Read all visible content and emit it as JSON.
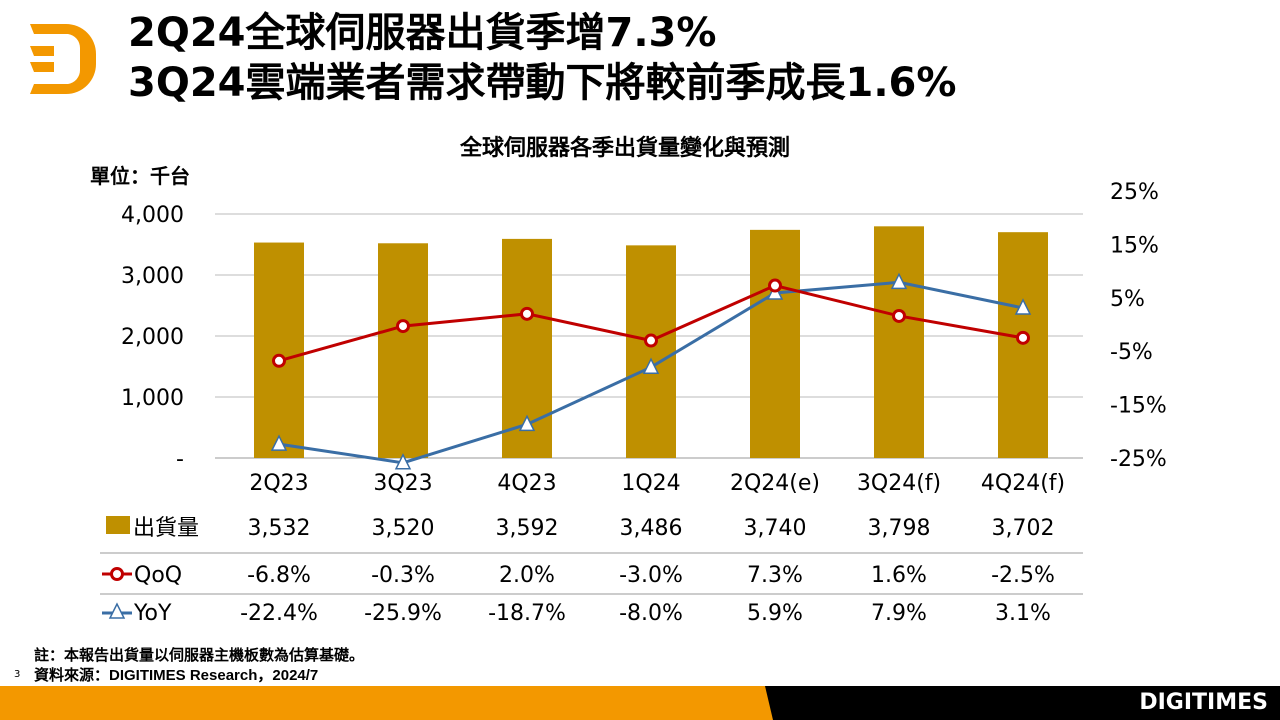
{
  "header": {
    "title_line1": "2Q24全球伺服器出貨季增7.3%",
    "title_line2": "3Q24雲端業者需求帶動下將較前季成長1.6%"
  },
  "footer": {
    "note": "註：本報告出貨量以伺服器主機板數為估算基礎。",
    "source": "資料來源：DIGITIMES Research，2024/7",
    "page": "3",
    "brand": "DIGITIMES"
  },
  "colors": {
    "bar": "#BF9000",
    "qoq": "#C00000",
    "yoy": "#3A6EA5",
    "orange": "#F39800"
  },
  "chart_data": {
    "type": "bar",
    "title": "全球伺服器各季出貨量變化與預測",
    "ylabel": "單位：千台",
    "categories": [
      "2Q23",
      "3Q23",
      "4Q23",
      "1Q24",
      "2Q24(e)",
      "3Q24(f)",
      "4Q24(f)"
    ],
    "ylim": [
      0,
      4000
    ],
    "yticks": [
      "-",
      "1,000",
      "2,000",
      "3,000",
      "4,000"
    ],
    "y2lim": [
      -25,
      25
    ],
    "y2ticks": [
      "-25%",
      "-15%",
      "-5%",
      "5%",
      "15%",
      "25%"
    ],
    "grid": true,
    "series": [
      {
        "name": "出貨量",
        "type": "bar",
        "values": [
          3532,
          3520,
          3592,
          3486,
          3740,
          3798,
          3702
        ],
        "labels": [
          "3,532",
          "3,520",
          "3,592",
          "3,486",
          "3,740",
          "3,798",
          "3,702"
        ]
      },
      {
        "name": "QoQ",
        "type": "line",
        "axis": "right",
        "values": [
          -6.8,
          -0.3,
          2.0,
          -3.0,
          7.3,
          1.6,
          -2.5
        ],
        "labels": [
          "-6.8%",
          "-0.3%",
          "2.0%",
          "-3.0%",
          "7.3%",
          "1.6%",
          "-2.5%"
        ]
      },
      {
        "name": "YoY",
        "type": "line",
        "axis": "right",
        "values": [
          -22.4,
          -25.9,
          -18.7,
          -8.0,
          5.9,
          7.9,
          3.1
        ],
        "labels": [
          "-22.4%",
          "-25.9%",
          "-18.7%",
          "-8.0%",
          "5.9%",
          "7.9%",
          "3.1%"
        ]
      }
    ]
  }
}
